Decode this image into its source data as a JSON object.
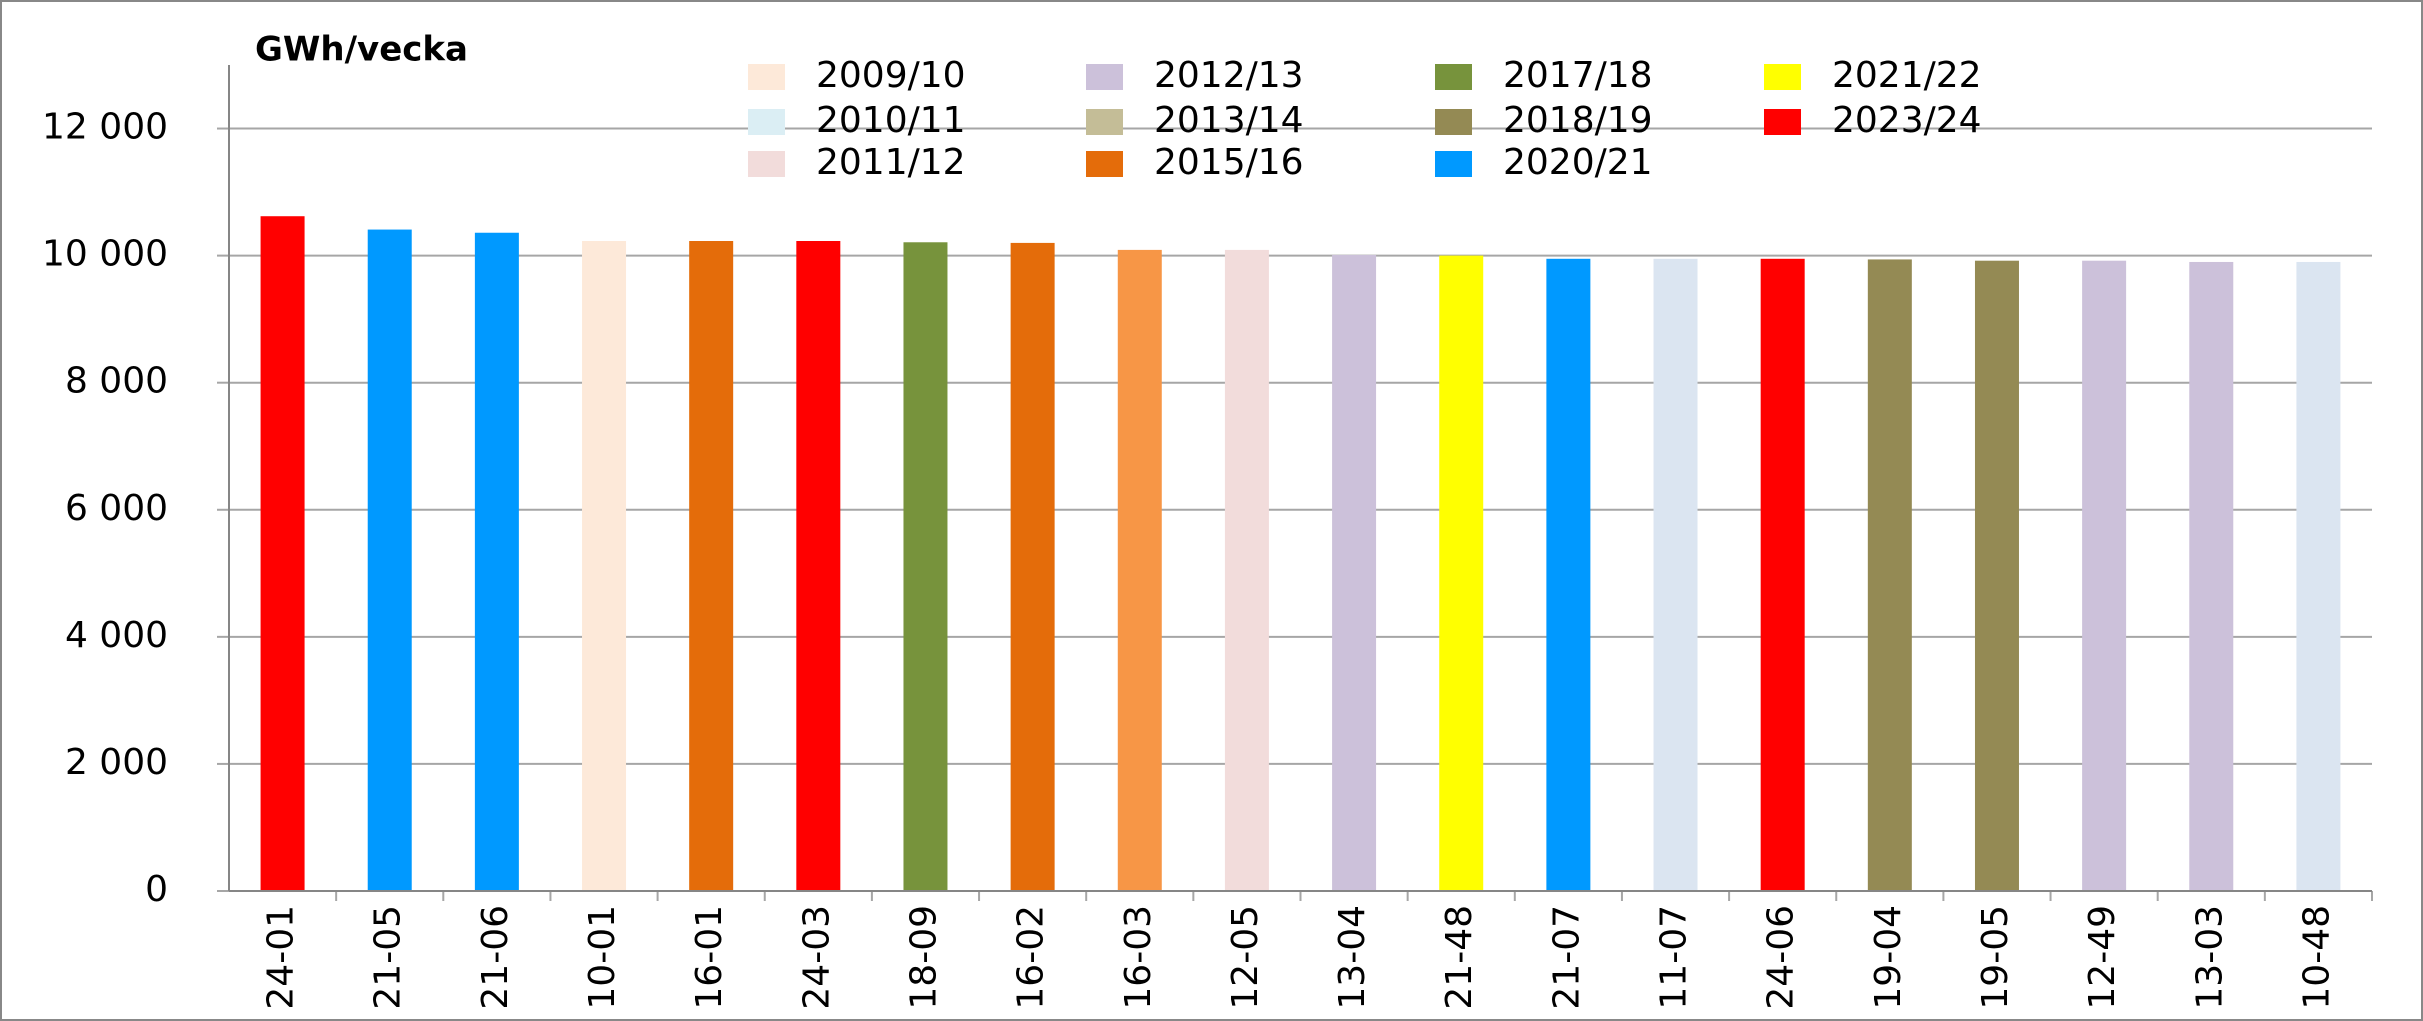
{
  "chart_data": {
    "type": "bar",
    "y_label": "GWh/vecka",
    "categories": [
      "24-01",
      "21-05",
      "21-06",
      "10-01",
      "16-01",
      "24-03",
      "18-09",
      "16-02",
      "16-03",
      "12-05",
      "13-04",
      "21-48",
      "21-07",
      "11-07",
      "24-06",
      "19-04",
      "19-05",
      "12-49",
      "13-03",
      "10-48"
    ],
    "values": [
      10620,
      10410,
      10360,
      10230,
      10230,
      10230,
      10210,
      10200,
      10090,
      10090,
      10010,
      10000,
      9950,
      9950,
      9950,
      9940,
      9920,
      9920,
      9900,
      9900
    ],
    "colors": [
      "#ff0000",
      "#0099ff",
      "#0099ff",
      "#fde9d9",
      "#e46c0a",
      "#ff0000",
      "#77933c",
      "#e46c0a",
      "#f79646",
      "#f2dcdb",
      "#ccc1da",
      "#ffff00",
      "#0099ff",
      "#dbe5f1",
      "#ff0000",
      "#948a54",
      "#948a54",
      "#ccc1da",
      "#ccc1da",
      "#dbe5f1"
    ],
    "legend": [
      {
        "name": "2009/10",
        "color": "#fde9d9"
      },
      {
        "name": "2010/11",
        "color": "#dbeef4"
      },
      {
        "name": "2011/12",
        "color": "#f2dcdb"
      },
      {
        "name": "2012/13",
        "color": "#ccc1da"
      },
      {
        "name": "2013/14",
        "color": "#c4bd97"
      },
      {
        "name": "2015/16",
        "color": "#e46c0a"
      },
      {
        "name": "2017/18",
        "color": "#77933c"
      },
      {
        "name": "2018/19",
        "color": "#948a54"
      },
      {
        "name": "2020/21",
        "color": "#0099ff"
      },
      {
        "name": "2021/22",
        "color": "#ffff00"
      },
      {
        "name": "2023/24",
        "color": "#ff0000"
      }
    ],
    "ylim": [
      0,
      13000
    ],
    "yticks": [
      0,
      {
        "value": 2000,
        "label": "2 000"
      },
      {
        "value": 4000,
        "label": "4 000"
      },
      {
        "value": 6000,
        "label": "6 000"
      },
      {
        "value": 8000,
        "label": "8 000"
      },
      {
        "value": 10000,
        "label": "10 000"
      },
      {
        "value": 12000,
        "label": "12 000"
      }
    ],
    "grid": true
  }
}
